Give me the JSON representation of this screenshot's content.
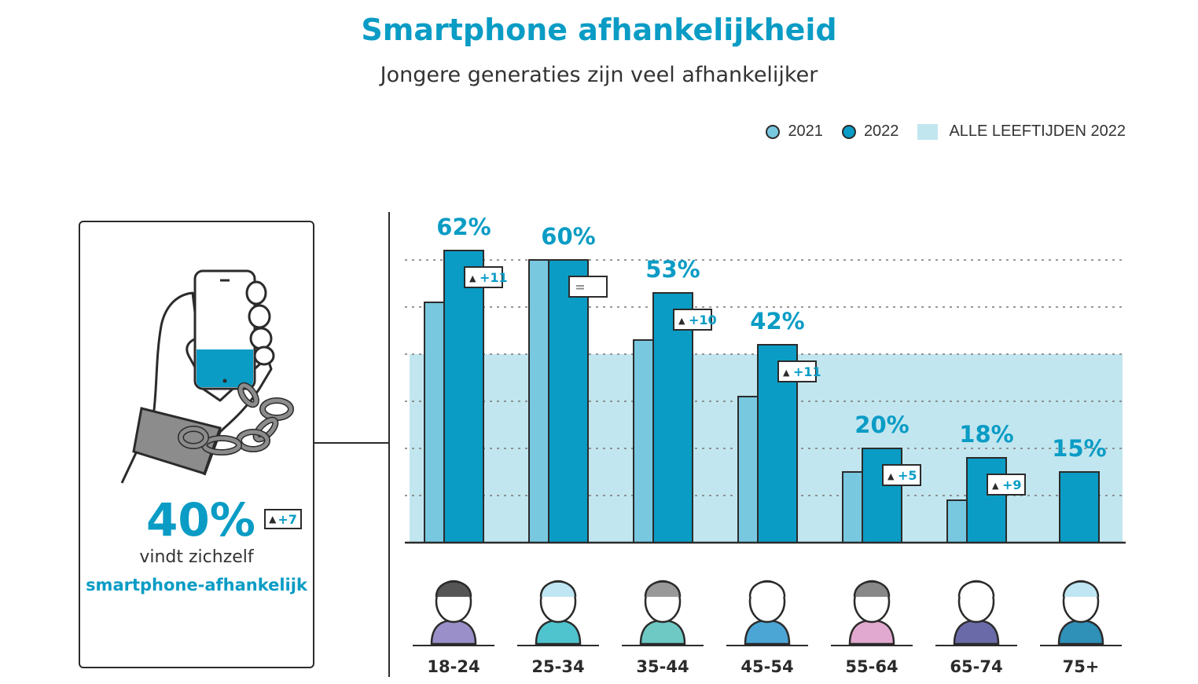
{
  "header": {
    "title": "Smartphone afhankelijkheid",
    "subtitle": "Jongere generaties zijn veel afhankelijker"
  },
  "legend": [
    {
      "label": "2021",
      "color": "#78c8e0",
      "kind": "dot"
    },
    {
      "label": "2022",
      "color": "#0a9cc5",
      "kind": "dot"
    },
    {
      "label": "ALLE LEEFTIJDEN 2022",
      "color": "#c2e6ef",
      "kind": "swatch"
    }
  ],
  "side_panel": {
    "value": "40%",
    "change": "+7",
    "text_line1": "vindt zichzelf",
    "text_line2": "smartphone-afhankelijk"
  },
  "chart_data": {
    "type": "bar",
    "categories": [
      "18-24",
      "25-34",
      "35-44",
      "45-54",
      "55-64",
      "65-74",
      "75+"
    ],
    "series": [
      {
        "name": "2021",
        "values": [
          51,
          60,
          43,
          31,
          15,
          9,
          null
        ]
      },
      {
        "name": "2022",
        "values": [
          62,
          60,
          53,
          42,
          20,
          18,
          15
        ]
      }
    ],
    "value_labels": [
      "62%",
      "60%",
      "53%",
      "42%",
      "20%",
      "18%",
      "15%"
    ],
    "changes": [
      "+11",
      "=",
      "+10",
      "+11",
      "+5",
      "+9",
      ""
    ],
    "all_ages_2022": 40,
    "ylim": [
      0,
      60
    ],
    "grid": true,
    "legend_position": "top-right",
    "colors": {
      "y2021": "#78c8e0",
      "y2022": "#0a9cc5",
      "all_ages": "#c2e6ef"
    }
  }
}
